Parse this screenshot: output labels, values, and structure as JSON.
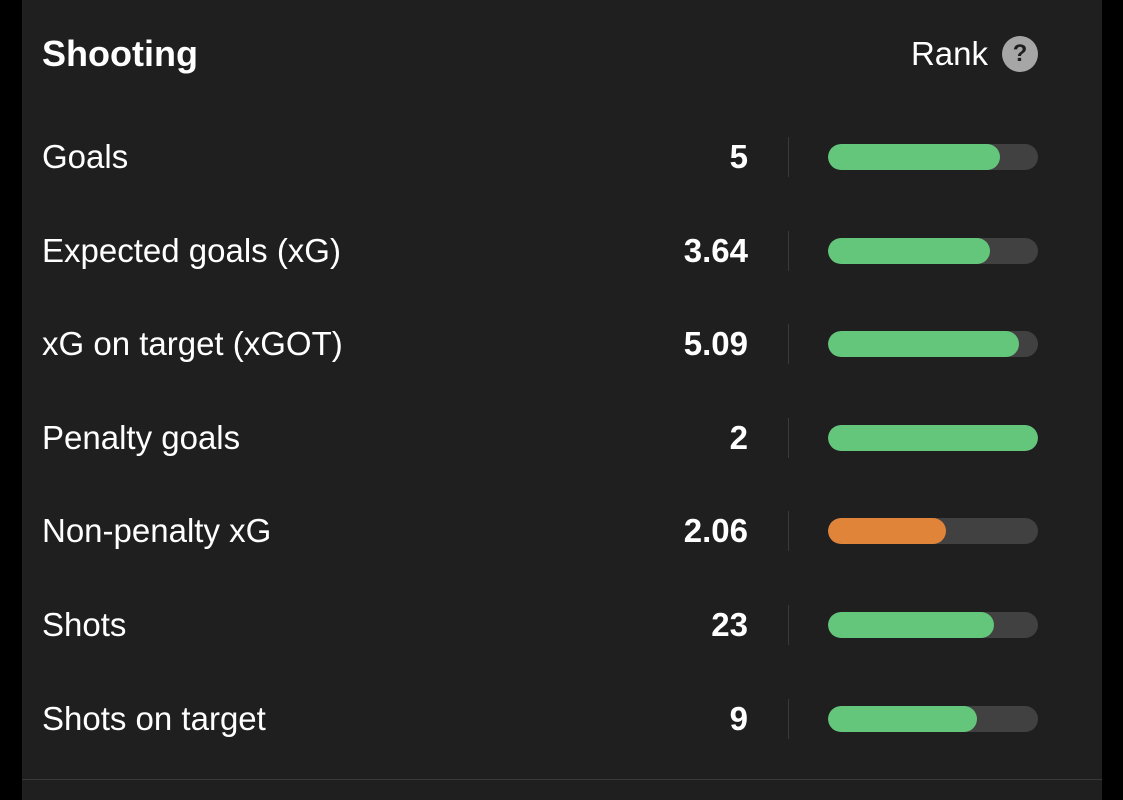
{
  "header": {
    "title": "Shooting",
    "rank_label": "Rank",
    "help_icon": "?"
  },
  "colors": {
    "good": "#63c67b",
    "medium": "#e0843a",
    "track": "#414141"
  },
  "stats": [
    {
      "label": "Goals",
      "value": "5",
      "rank_fill": 0.82,
      "status": "good"
    },
    {
      "label": "Expected goals (xG)",
      "value": "3.64",
      "rank_fill": 0.77,
      "status": "good"
    },
    {
      "label": "xG on target (xGOT)",
      "value": "5.09",
      "rank_fill": 0.91,
      "status": "good"
    },
    {
      "label": "Penalty goals",
      "value": "2",
      "rank_fill": 1.0,
      "status": "good"
    },
    {
      "label": "Non-penalty xG",
      "value": "2.06",
      "rank_fill": 0.56,
      "status": "medium"
    },
    {
      "label": "Shots",
      "value": "23",
      "rank_fill": 0.79,
      "status": "good"
    },
    {
      "label": "Shots on target",
      "value": "9",
      "rank_fill": 0.71,
      "status": "good"
    }
  ]
}
